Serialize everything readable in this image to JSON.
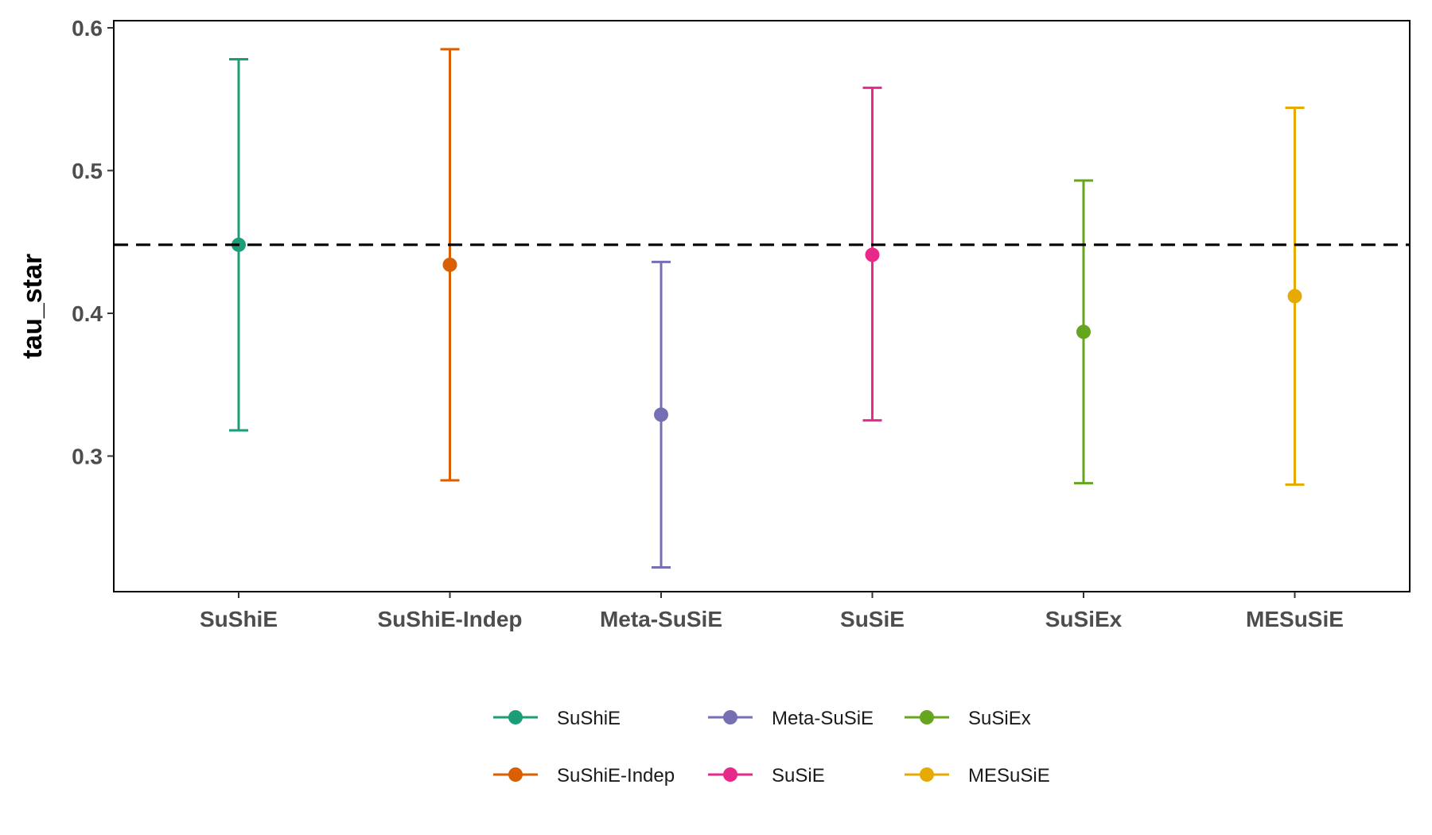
{
  "chart_data": {
    "type": "errorbar",
    "ylabel": "tau_star",
    "xlabel": "",
    "ylim": [
      0.205,
      0.605
    ],
    "y_ticks": [
      "0.3",
      "0.4",
      "0.5",
      "0.6"
    ],
    "reference_line": {
      "y": 0.448,
      "style": "dashed",
      "color": "#000000"
    },
    "grid": false,
    "legend_position": "bottom",
    "categories": [
      "SuShiE",
      "SuShiE-Indep",
      "Meta-SuSiE",
      "SuSiE",
      "SuSiEx",
      "MESuSiE"
    ],
    "series": [
      {
        "name": "SuShiE",
        "estimate": 0.448,
        "lower": 0.318,
        "upper": 0.578,
        "color": "#1B9E77"
      },
      {
        "name": "SuShiE-Indep",
        "estimate": 0.434,
        "lower": 0.283,
        "upper": 0.585,
        "color": "#D95F02"
      },
      {
        "name": "Meta-SuSiE",
        "estimate": 0.329,
        "lower": 0.222,
        "upper": 0.436,
        "color": "#7570B3"
      },
      {
        "name": "SuSiE",
        "estimate": 0.441,
        "lower": 0.325,
        "upper": 0.558,
        "color": "#E7298A"
      },
      {
        "name": "SuSiEx",
        "estimate": 0.387,
        "lower": 0.281,
        "upper": 0.493,
        "color": "#66A61E"
      },
      {
        "name": "MESuSiE",
        "estimate": 0.412,
        "lower": 0.28,
        "upper": 0.544,
        "color": "#E6AB02"
      }
    ],
    "legend_order": [
      "SuShiE",
      "SuShiE-Indep",
      "Meta-SuSiE",
      "SuSiE",
      "SuSiEx",
      "MESuSiE"
    ]
  }
}
